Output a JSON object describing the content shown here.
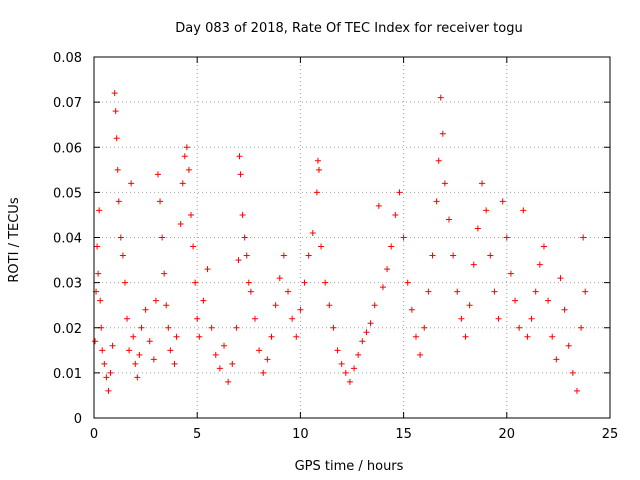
{
  "chart_data": {
    "type": "scatter",
    "title": "Day 083 of 2018, Rate Of TEC Index for receiver togu",
    "xlabel": "GPS time / hours",
    "ylabel": "ROTI / TECUs",
    "xlim": [
      0,
      25
    ],
    "ylim": [
      0,
      0.08
    ],
    "xticks": [
      0,
      5,
      10,
      15,
      20,
      25
    ],
    "xtick_labels": [
      "0",
      "5",
      "10",
      "15",
      "20",
      "25"
    ],
    "yticks": [
      0,
      0.01,
      0.02,
      0.03,
      0.04,
      0.05,
      0.06,
      0.07,
      0.08
    ],
    "ytick_labels": [
      "0",
      "0.01",
      "0.02",
      "0.03",
      "0.04",
      "0.05",
      "0.06",
      "0.07",
      "0.08"
    ],
    "grid": true,
    "marker": "+",
    "color": "#ff0000",
    "series": [
      {
        "points": [
          [
            0.05,
            0.017
          ],
          [
            0.1,
            0.028
          ],
          [
            0.15,
            0.038
          ],
          [
            0.2,
            0.032
          ],
          [
            0.25,
            0.046
          ],
          [
            0.3,
            0.026
          ],
          [
            0.35,
            0.02
          ],
          [
            0.4,
            0.015
          ],
          [
            0.5,
            0.012
          ],
          [
            0.6,
            0.009
          ],
          [
            0.7,
            0.006
          ],
          [
            0.8,
            0.01
          ],
          [
            0.9,
            0.016
          ],
          [
            1.0,
            0.072
          ],
          [
            1.05,
            0.068
          ],
          [
            1.1,
            0.062
          ],
          [
            1.15,
            0.055
          ],
          [
            1.2,
            0.048
          ],
          [
            1.3,
            0.04
          ],
          [
            1.4,
            0.036
          ],
          [
            1.5,
            0.03
          ],
          [
            1.6,
            0.022
          ],
          [
            1.7,
            0.015
          ],
          [
            1.8,
            0.052
          ],
          [
            1.9,
            0.018
          ],
          [
            2.0,
            0.012
          ],
          [
            2.1,
            0.009
          ],
          [
            2.2,
            0.014
          ],
          [
            2.3,
            0.02
          ],
          [
            2.5,
            0.024
          ],
          [
            2.7,
            0.017
          ],
          [
            2.9,
            0.013
          ],
          [
            3.0,
            0.026
          ],
          [
            3.1,
            0.054
          ],
          [
            3.2,
            0.048
          ],
          [
            3.3,
            0.04
          ],
          [
            3.4,
            0.032
          ],
          [
            3.5,
            0.025
          ],
          [
            3.6,
            0.02
          ],
          [
            3.7,
            0.015
          ],
          [
            3.9,
            0.012
          ],
          [
            4.0,
            0.018
          ],
          [
            4.2,
            0.043
          ],
          [
            4.3,
            0.052
          ],
          [
            4.4,
            0.058
          ],
          [
            4.5,
            0.06
          ],
          [
            4.6,
            0.055
          ],
          [
            4.7,
            0.045
          ],
          [
            4.8,
            0.038
          ],
          [
            4.9,
            0.03
          ],
          [
            5.0,
            0.022
          ],
          [
            5.1,
            0.018
          ],
          [
            5.3,
            0.026
          ],
          [
            5.5,
            0.033
          ],
          [
            5.7,
            0.02
          ],
          [
            5.9,
            0.014
          ],
          [
            6.1,
            0.011
          ],
          [
            6.3,
            0.016
          ],
          [
            6.5,
            0.008
          ],
          [
            6.7,
            0.012
          ],
          [
            6.9,
            0.02
          ],
          [
            7.0,
            0.035
          ],
          [
            7.05,
            0.058
          ],
          [
            7.1,
            0.054
          ],
          [
            7.2,
            0.045
          ],
          [
            7.3,
            0.04
          ],
          [
            7.4,
            0.036
          ],
          [
            7.5,
            0.03
          ],
          [
            7.6,
            0.028
          ],
          [
            7.8,
            0.022
          ],
          [
            8.0,
            0.015
          ],
          [
            8.2,
            0.01
          ],
          [
            8.4,
            0.013
          ],
          [
            8.6,
            0.018
          ],
          [
            8.8,
            0.025
          ],
          [
            9.0,
            0.031
          ],
          [
            9.2,
            0.036
          ],
          [
            9.4,
            0.028
          ],
          [
            9.6,
            0.022
          ],
          [
            9.8,
            0.018
          ],
          [
            10.0,
            0.024
          ],
          [
            10.2,
            0.03
          ],
          [
            10.4,
            0.036
          ],
          [
            10.6,
            0.041
          ],
          [
            10.8,
            0.05
          ],
          [
            10.85,
            0.057
          ],
          [
            10.9,
            0.055
          ],
          [
            11.0,
            0.038
          ],
          [
            11.2,
            0.03
          ],
          [
            11.4,
            0.025
          ],
          [
            11.6,
            0.02
          ],
          [
            11.8,
            0.015
          ],
          [
            12.0,
            0.012
          ],
          [
            12.2,
            0.01
          ],
          [
            12.4,
            0.008
          ],
          [
            12.6,
            0.011
          ],
          [
            12.8,
            0.014
          ],
          [
            13.0,
            0.017
          ],
          [
            13.2,
            0.019
          ],
          [
            13.4,
            0.021
          ],
          [
            13.6,
            0.025
          ],
          [
            13.8,
            0.047
          ],
          [
            14.0,
            0.029
          ],
          [
            14.2,
            0.033
          ],
          [
            14.4,
            0.038
          ],
          [
            14.6,
            0.045
          ],
          [
            14.8,
            0.05
          ],
          [
            15.0,
            0.04
          ],
          [
            15.2,
            0.03
          ],
          [
            15.4,
            0.024
          ],
          [
            15.6,
            0.018
          ],
          [
            15.8,
            0.014
          ],
          [
            16.0,
            0.02
          ],
          [
            16.2,
            0.028
          ],
          [
            16.4,
            0.036
          ],
          [
            16.6,
            0.048
          ],
          [
            16.7,
            0.057
          ],
          [
            16.8,
            0.071
          ],
          [
            16.9,
            0.063
          ],
          [
            17.0,
            0.052
          ],
          [
            17.2,
            0.044
          ],
          [
            17.4,
            0.036
          ],
          [
            17.6,
            0.028
          ],
          [
            17.8,
            0.022
          ],
          [
            18.0,
            0.018
          ],
          [
            18.2,
            0.025
          ],
          [
            18.4,
            0.034
          ],
          [
            18.6,
            0.042
          ],
          [
            18.8,
            0.052
          ],
          [
            19.0,
            0.046
          ],
          [
            19.2,
            0.036
          ],
          [
            19.4,
            0.028
          ],
          [
            19.6,
            0.022
          ],
          [
            19.8,
            0.048
          ],
          [
            20.0,
            0.04
          ],
          [
            20.2,
            0.032
          ],
          [
            20.4,
            0.026
          ],
          [
            20.6,
            0.02
          ],
          [
            20.8,
            0.046
          ],
          [
            21.0,
            0.018
          ],
          [
            21.2,
            0.022
          ],
          [
            21.4,
            0.028
          ],
          [
            21.6,
            0.034
          ],
          [
            21.8,
            0.038
          ],
          [
            22.0,
            0.026
          ],
          [
            22.2,
            0.018
          ],
          [
            22.4,
            0.013
          ],
          [
            22.6,
            0.031
          ],
          [
            22.8,
            0.024
          ],
          [
            23.0,
            0.016
          ],
          [
            23.2,
            0.01
          ],
          [
            23.4,
            0.006
          ],
          [
            23.6,
            0.02
          ],
          [
            23.7,
            0.04
          ],
          [
            23.8,
            0.028
          ]
        ]
      }
    ]
  }
}
